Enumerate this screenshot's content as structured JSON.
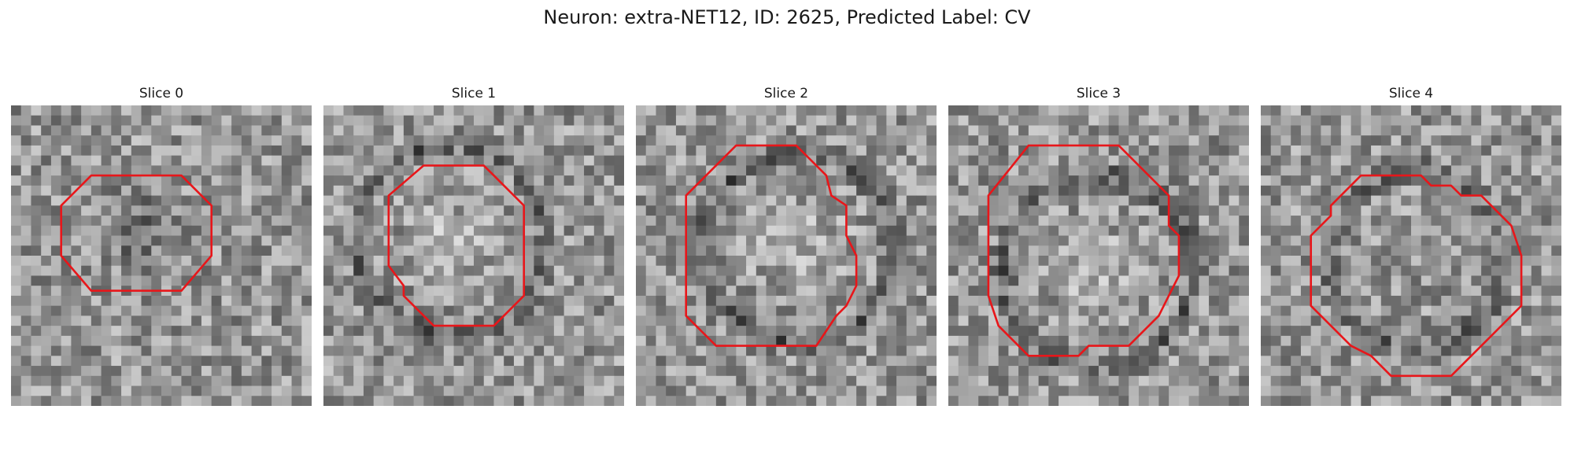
{
  "title": "Neuron: extra-NET12, ID: 2625, Predicted Label: CV",
  "contour_color": "#e8161a",
  "slices": [
    {
      "label": "Slice 0",
      "seed": 11,
      "ring": "dark-center"
    },
    {
      "label": "Slice 1",
      "seed": 23,
      "ring": "bright-center"
    },
    {
      "label": "Slice 2",
      "seed": 37,
      "ring": "bright-center"
    },
    {
      "label": "Slice 3",
      "seed": 41,
      "ring": "bright-center"
    },
    {
      "label": "Slice 4",
      "seed": 59,
      "ring": "mixed"
    }
  ]
}
